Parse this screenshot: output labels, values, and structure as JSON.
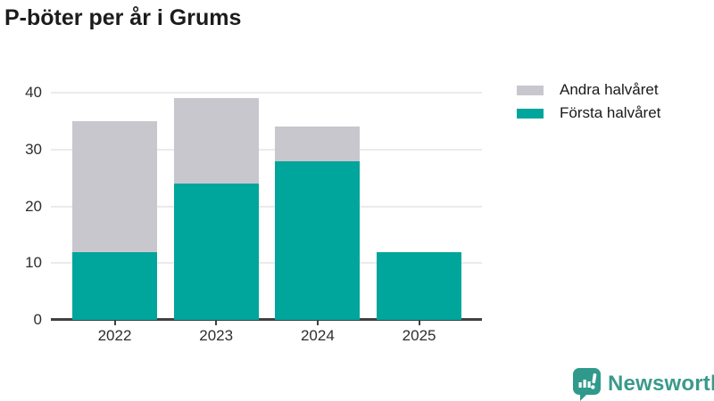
{
  "title": "P-böter per år i Grums",
  "chart_data": {
    "type": "bar",
    "stacked": true,
    "title": "P-böter per år i Grums",
    "categories": [
      "2022",
      "2023",
      "2024",
      "2025"
    ],
    "series": [
      {
        "name": "Första halvåret",
        "color": "#00a59b",
        "values": [
          12,
          24,
          28,
          12
        ]
      },
      {
        "name": "Andra halvåret",
        "color": "#c8c7ce",
        "values": [
          23,
          15,
          6,
          0
        ]
      }
    ],
    "totals": [
      35,
      39,
      34,
      12
    ],
    "xlabel": "",
    "ylabel": "",
    "ylim": [
      0,
      40
    ],
    "yticks": [
      0,
      10,
      20,
      30,
      40
    ],
    "grid": true,
    "legend_position": "top-right"
  },
  "legend": {
    "items": [
      {
        "label": "Andra halvåret",
        "color": "#c8c7ce"
      },
      {
        "label": "Första halvåret",
        "color": "#00a59b"
      }
    ]
  },
  "logo": {
    "label": "Newsworthy",
    "color": "#3a9a8b",
    "icon_color": "#2f9a8b",
    "icon": "newsworthy-bubble-chart-icon"
  },
  "colors": {
    "axis": "#404040",
    "gridline": "#ebebeb",
    "axis_text": "#2e2e2e",
    "title_text": "#1c1c1c"
  }
}
